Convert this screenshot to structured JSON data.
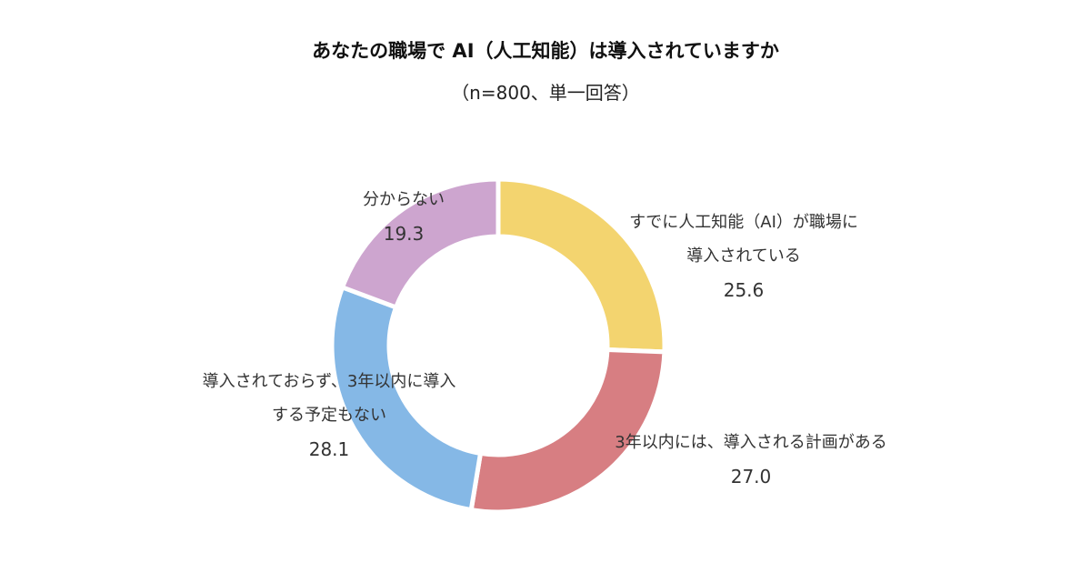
{
  "chart_data": {
    "type": "pie",
    "donut": true,
    "title": "あなたの職場で AI（人工知能）は導入されていますか",
    "subtitle": "（n=800、単一回答）",
    "slices": [
      {
        "label_lines": [
          "すでに人工知能（AI）が職場に",
          "導入されている"
        ],
        "value": 25.6,
        "value_text": "25.6",
        "color": "#F3D46F"
      },
      {
        "label_lines": [
          "3年以内には、導入される計画がある"
        ],
        "value": 27.0,
        "value_text": "27.0",
        "color": "#D77E82"
      },
      {
        "label_lines": [
          "導入されておらず、3年以内に導入",
          "する予定もない"
        ],
        "value": 28.1,
        "value_text": "28.1",
        "color": "#85B8E6"
      },
      {
        "label_lines": [
          "分からない"
        ],
        "value": 19.3,
        "value_text": "19.3",
        "color": "#CDA5CF"
      }
    ]
  }
}
